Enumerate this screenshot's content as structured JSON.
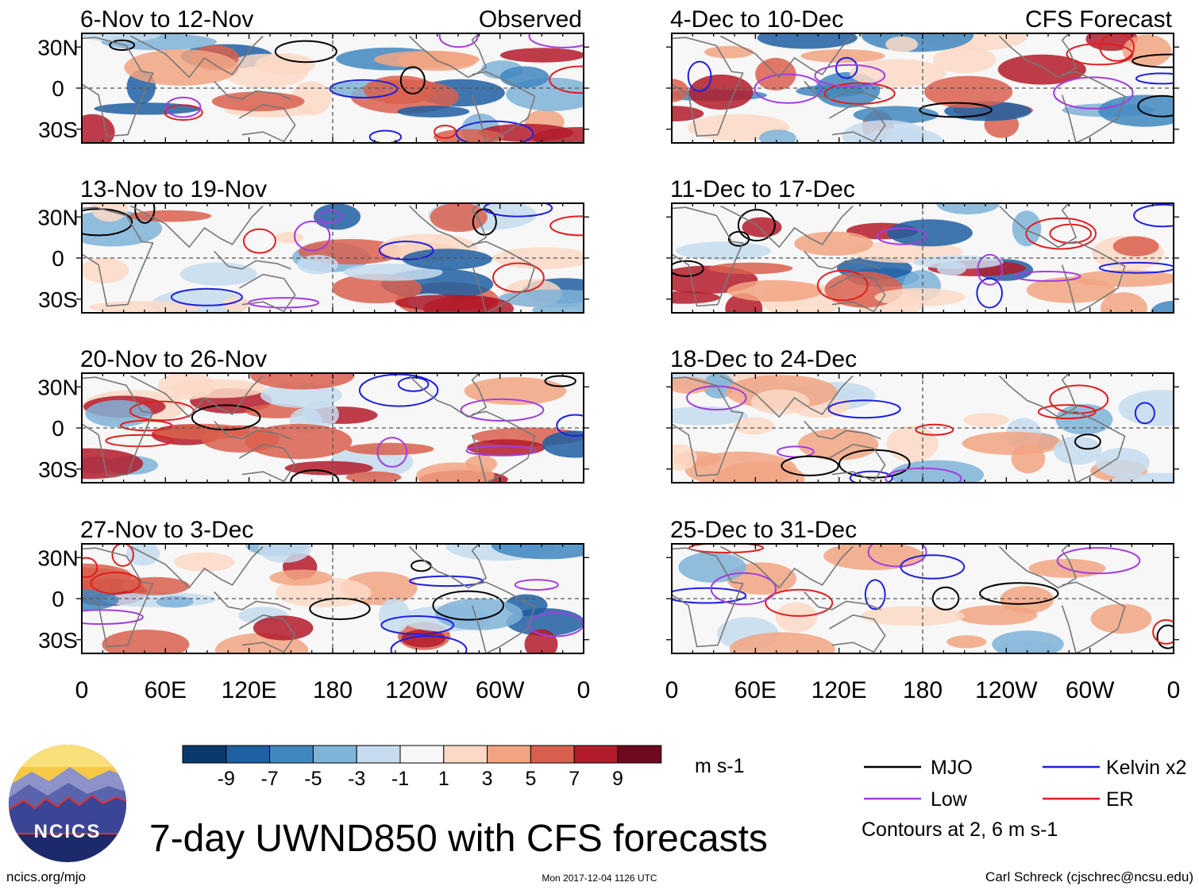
{
  "chart_data": {
    "type": "heatmap",
    "variable": "UWND850",
    "units": "m s-1",
    "title": "7-day UWND850 with CFS forecasts",
    "y_ticks": [
      "30N",
      "0",
      "30S"
    ],
    "x_ticks": [
      "0",
      "60E",
      "120E",
      "180",
      "120W",
      "60W",
      "0"
    ],
    "observed_label": "Observed",
    "forecast_label": "CFS Forecast",
    "observed_panels": [
      {
        "title": "6-Nov to 12-Nov"
      },
      {
        "title": "13-Nov to 19-Nov"
      },
      {
        "title": "20-Nov to 26-Nov"
      },
      {
        "title": "27-Nov to 3-Dec"
      }
    ],
    "forecast_panels": [
      {
        "title": "4-Dec to 10-Dec"
      },
      {
        "title": "11-Dec to 17-Dec"
      },
      {
        "title": "18-Dec to 24-Dec"
      },
      {
        "title": "25-Dec to 31-Dec"
      }
    ],
    "colorbar": {
      "labels": [
        "-9",
        "-7",
        "-5",
        "-3",
        "-1",
        "1",
        "3",
        "5",
        "7",
        "9"
      ],
      "colors": [
        "#0a3a6b",
        "#1f5fa3",
        "#3f87bf",
        "#7fb3d8",
        "#c6dcee",
        "#f7f7f7",
        "#fcd9c6",
        "#f2a482",
        "#d9604e",
        "#b41b2a",
        "#6e0a1e"
      ]
    },
    "legend": [
      {
        "label": "MJO",
        "color": "#000000"
      },
      {
        "label": "Kelvin x2",
        "color": "#1f1fe0"
      },
      {
        "label": "Low",
        "color": "#a23ee0"
      },
      {
        "label": "ER",
        "color": "#e01f1f"
      }
    ],
    "contour_note": "Contours at 2, 6 m s-1"
  },
  "footer": {
    "logo_text": "NCICS",
    "website": "ncics.org/mjo",
    "timestamp": "Mon 2017-12-04 1126 UTC",
    "credit": "Carl Schreck (cjschrec@ncsu.edu)"
  }
}
